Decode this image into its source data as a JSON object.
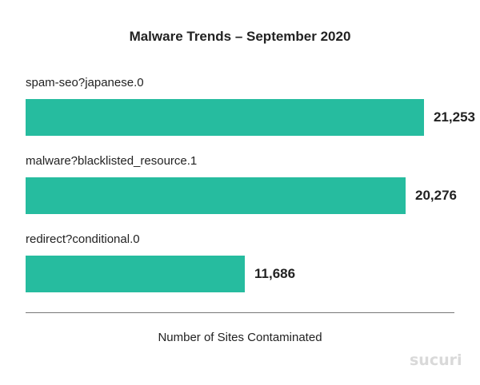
{
  "colors": {
    "bar": "#26bc9f",
    "axis": "#777777",
    "watermark": "#d9d9d9"
  },
  "chart_data": {
    "type": "bar",
    "orientation": "horizontal",
    "title": "Malware Trends – September 2020",
    "xlabel": "Number of Sites Contaminated",
    "ylabel": "",
    "categories": [
      "spam-seo?japanese.0",
      "malware?blacklisted_resource.1",
      "redirect?conditional.0"
    ],
    "values": [
      21253,
      20276,
      11686
    ],
    "value_labels": [
      "21,253",
      "20,276",
      "11,686"
    ],
    "xlim": [
      0,
      22860
    ],
    "grid": false,
    "legend": "none"
  },
  "watermark": {
    "text": "sucuri"
  }
}
